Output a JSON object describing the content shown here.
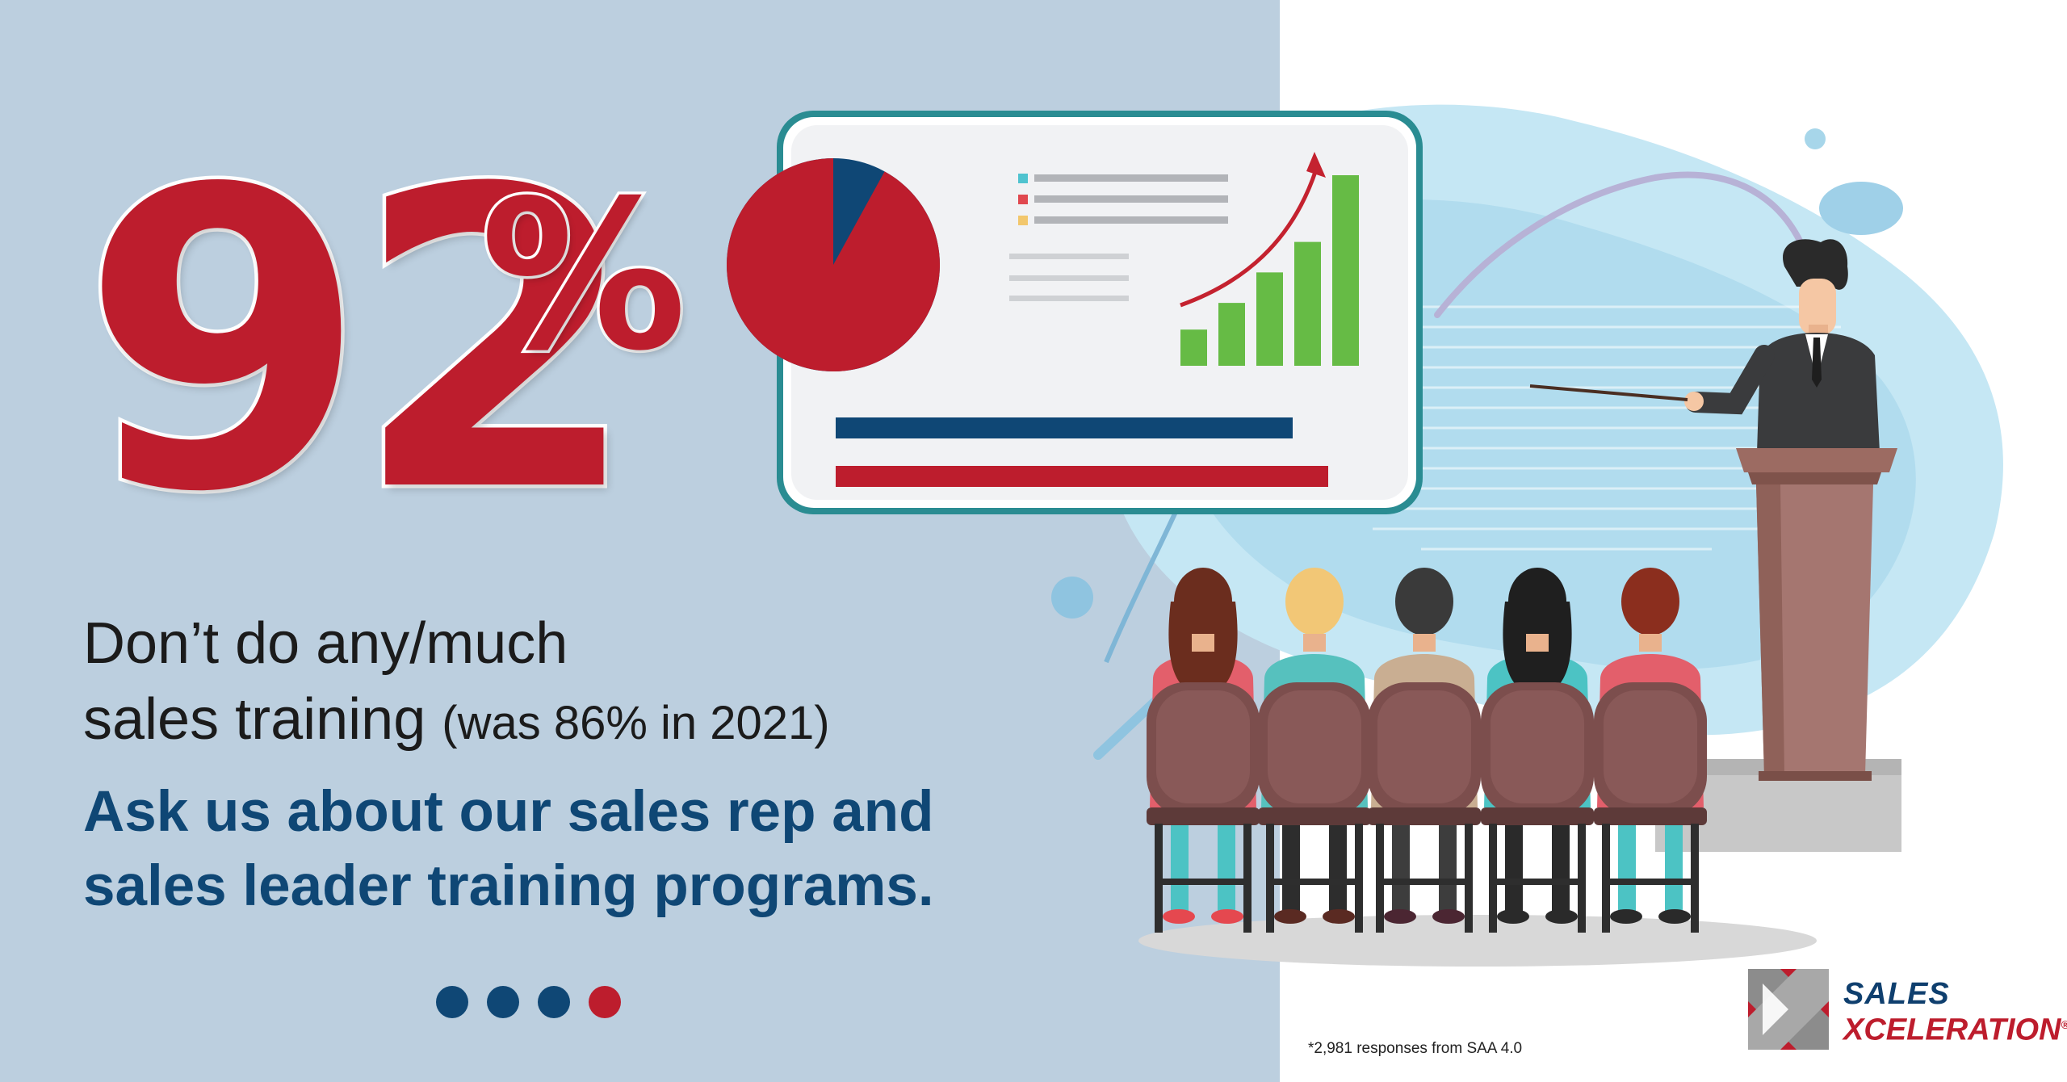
{
  "headline": {
    "number": "92",
    "percent_sign": "%"
  },
  "description": {
    "line1": "Don’t do any/much",
    "line2_main": "sales training",
    "line2_note": "(was 86% in 2021)"
  },
  "call_to_action": {
    "line1": "Ask us about our sales rep and",
    "line2": "sales leader training programs."
  },
  "pagination": {
    "count": 4,
    "active_index": 3,
    "colors": {
      "inactive": "#0f4775",
      "active": "#bd1d2d"
    }
  },
  "footnote": "*2,981 responses from SAA 4.0",
  "logo": {
    "line1": "SALES",
    "line2": "XCELERATION",
    "registered_mark": "®"
  },
  "illustration": {
    "slide_pie_share": 0.92,
    "slide_bar_levels": [
      0.19,
      0.33,
      0.49,
      0.65,
      1.0
    ],
    "colors": {
      "brand_red": "#bd1d2d",
      "brand_navy": "#0f4775",
      "growth_green": "#66bb45"
    },
    "icons": [
      "presentation-board-icon",
      "pie-chart-icon",
      "bar-chart-icon",
      "trend-arrow-icon",
      "presenter-figure",
      "audience-figures",
      "podium-icon"
    ]
  }
}
